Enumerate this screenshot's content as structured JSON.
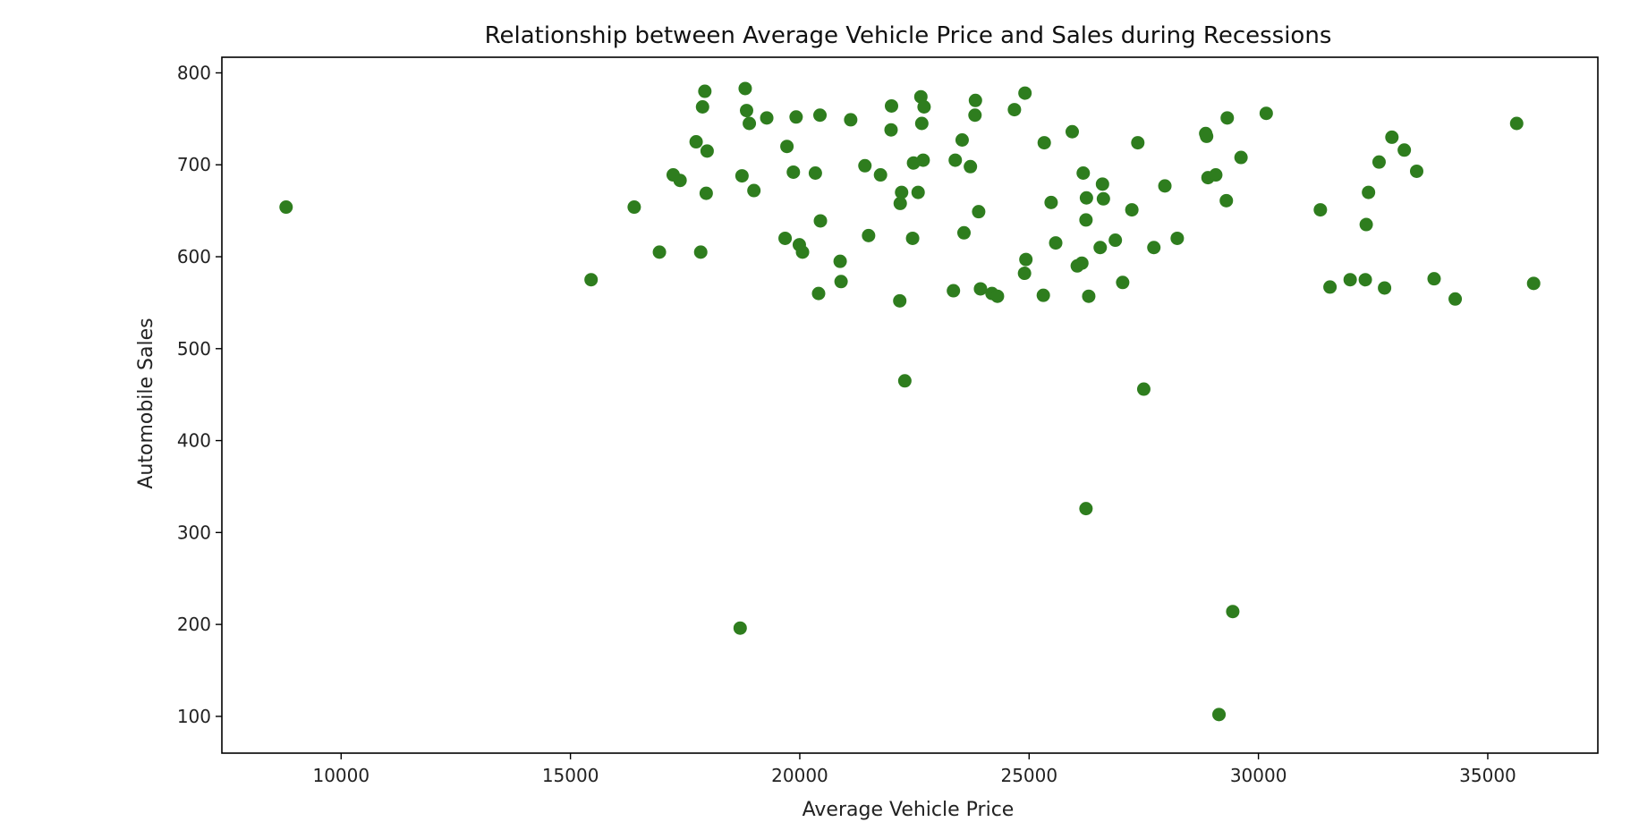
{
  "chart_data": {
    "type": "scatter",
    "title": "Relationship between Average Vehicle Price and Sales during Recessions",
    "xlabel": "Average Vehicle Price",
    "ylabel": "Automobile Sales",
    "xlim": [
      7400,
      37400
    ],
    "ylim": [
      60,
      817
    ],
    "xticks": [
      10000,
      15000,
      20000,
      25000,
      30000,
      35000
    ],
    "yticks": [
      100,
      200,
      300,
      400,
      500,
      600,
      700,
      800
    ],
    "grid": false,
    "marker_color": "#2e7d1e",
    "series": [
      {
        "points": [
          [
            8800,
            654
          ],
          [
            15450,
            575
          ],
          [
            16390,
            654
          ],
          [
            16940,
            605
          ],
          [
            17240,
            689
          ],
          [
            17390,
            683
          ],
          [
            17740,
            725
          ],
          [
            17840,
            605
          ],
          [
            17880,
            763
          ],
          [
            17930,
            780
          ],
          [
            17960,
            669
          ],
          [
            17980,
            715
          ],
          [
            18700,
            196
          ],
          [
            18740,
            688
          ],
          [
            18810,
            783
          ],
          [
            18840,
            759
          ],
          [
            18900,
            745
          ],
          [
            19000,
            672
          ],
          [
            19280,
            751
          ],
          [
            19680,
            620
          ],
          [
            19720,
            720
          ],
          [
            19860,
            692
          ],
          [
            19920,
            752
          ],
          [
            19990,
            613
          ],
          [
            20060,
            605
          ],
          [
            20340,
            691
          ],
          [
            20410,
            560
          ],
          [
            20440,
            754
          ],
          [
            20450,
            639
          ],
          [
            20880,
            595
          ],
          [
            20900,
            573
          ],
          [
            21110,
            749
          ],
          [
            21420,
            699
          ],
          [
            21500,
            623
          ],
          [
            21760,
            689
          ],
          [
            21990,
            738
          ],
          [
            22000,
            764
          ],
          [
            22180,
            552
          ],
          [
            22190,
            658
          ],
          [
            22220,
            670
          ],
          [
            22290,
            465
          ],
          [
            22460,
            620
          ],
          [
            22480,
            702
          ],
          [
            22580,
            670
          ],
          [
            22640,
            774
          ],
          [
            22660,
            745
          ],
          [
            22690,
            705
          ],
          [
            22710,
            763
          ],
          [
            23350,
            563
          ],
          [
            23390,
            705
          ],
          [
            23540,
            727
          ],
          [
            23580,
            626
          ],
          [
            23720,
            698
          ],
          [
            23820,
            754
          ],
          [
            23830,
            770
          ],
          [
            23900,
            649
          ],
          [
            23940,
            565
          ],
          [
            24190,
            560
          ],
          [
            24310,
            557
          ],
          [
            24680,
            760
          ],
          [
            24900,
            582
          ],
          [
            24910,
            778
          ],
          [
            24930,
            597
          ],
          [
            25310,
            558
          ],
          [
            25330,
            724
          ],
          [
            25480,
            659
          ],
          [
            25580,
            615
          ],
          [
            25940,
            736
          ],
          [
            26050,
            590
          ],
          [
            26150,
            593
          ],
          [
            26180,
            691
          ],
          [
            26240,
            326
          ],
          [
            26240,
            640
          ],
          [
            26250,
            664
          ],
          [
            26300,
            557
          ],
          [
            26550,
            610
          ],
          [
            26600,
            679
          ],
          [
            26620,
            663
          ],
          [
            26880,
            618
          ],
          [
            27040,
            572
          ],
          [
            27240,
            651
          ],
          [
            27370,
            724
          ],
          [
            27500,
            456
          ],
          [
            27720,
            610
          ],
          [
            27960,
            677
          ],
          [
            28230,
            620
          ],
          [
            28850,
            734
          ],
          [
            28870,
            731
          ],
          [
            28900,
            686
          ],
          [
            29070,
            689
          ],
          [
            29140,
            102
          ],
          [
            29300,
            661
          ],
          [
            29320,
            751
          ],
          [
            29440,
            214
          ],
          [
            29620,
            708
          ],
          [
            30170,
            756
          ],
          [
            31350,
            651
          ],
          [
            31560,
            567
          ],
          [
            32000,
            575
          ],
          [
            32330,
            575
          ],
          [
            32350,
            635
          ],
          [
            32400,
            670
          ],
          [
            32630,
            703
          ],
          [
            32750,
            566
          ],
          [
            32910,
            730
          ],
          [
            33180,
            716
          ],
          [
            33450,
            693
          ],
          [
            33830,
            576
          ],
          [
            34290,
            554
          ],
          [
            35630,
            745
          ],
          [
            36000,
            571
          ]
        ]
      }
    ]
  }
}
